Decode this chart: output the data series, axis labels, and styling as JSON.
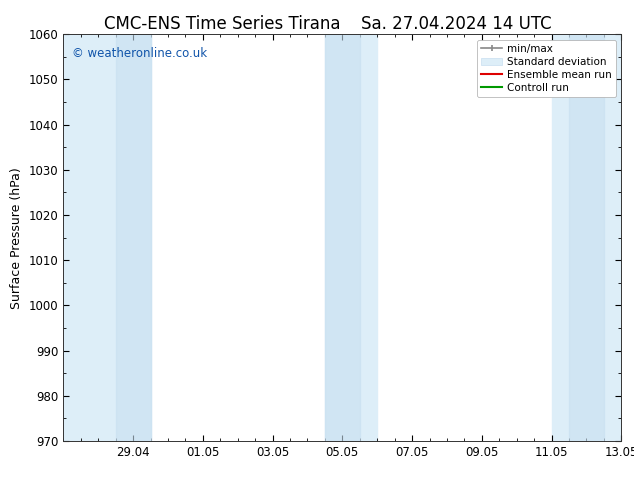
{
  "title_left": "CMC-ENS Time Series Tirana",
  "title_right": "Sa. 27.04.2024 14 UTC",
  "ylabel": "Surface Pressure (hPa)",
  "ylim": [
    970,
    1060
  ],
  "yticks": [
    970,
    980,
    990,
    1000,
    1010,
    1020,
    1030,
    1040,
    1050,
    1060
  ],
  "xlim_start": 0.0,
  "xlim_end": 16.0,
  "xtick_labels": [
    "29.04",
    "01.05",
    "03.05",
    "05.05",
    "07.05",
    "09.05",
    "11.05",
    "13.05"
  ],
  "xtick_positions": [
    2.0,
    4.0,
    6.0,
    8.0,
    10.0,
    12.0,
    14.0,
    16.0
  ],
  "minor_xtick_count": 32,
  "shaded_bands": [
    {
      "xmin": 0.0,
      "xmax": 2.5,
      "inner_xmin": 1.5,
      "inner_xmax": 2.5
    },
    {
      "xmin": 7.5,
      "xmax": 9.0,
      "inner_xmin": 7.5,
      "inner_xmax": 8.5
    },
    {
      "xmin": 14.0,
      "xmax": 16.0,
      "inner_xmin": 14.5,
      "inner_xmax": 15.5
    }
  ],
  "band_color_outer": "#ddeef8",
  "band_color_inner": "#c8dff0",
  "background_color": "#ffffff",
  "watermark_text": "© weatheronline.co.uk",
  "watermark_color": "#1155aa",
  "legend_labels": [
    "min/max",
    "Standard deviation",
    "Ensemble mean run",
    "Controll run"
  ],
  "legend_colors_line": [
    "#888888",
    "#c8dff0",
    "#dd0000",
    "#009900"
  ],
  "title_fontsize": 12,
  "axis_label_fontsize": 9,
  "tick_fontsize": 8.5
}
